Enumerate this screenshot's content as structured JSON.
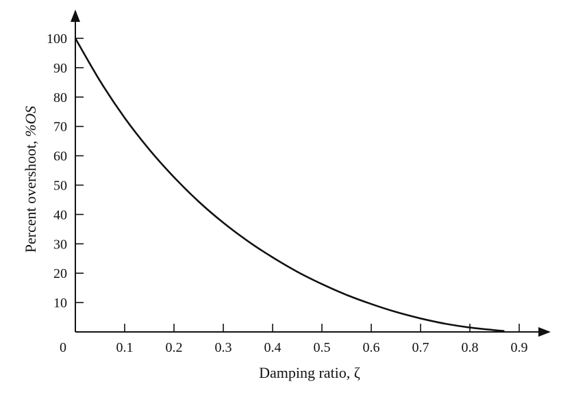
{
  "chart_data": {
    "type": "line",
    "title": "",
    "xlabel": "Damping ratio, ζ",
    "ylabel_prefix": "Percent overshoot, ",
    "ylabel_symbol": "%OS",
    "xlim": [
      0,
      0.9
    ],
    "ylim": [
      0,
      100
    ],
    "x_ticks": [
      0.1,
      0.2,
      0.3,
      0.4,
      0.5,
      0.6,
      0.7,
      0.8,
      0.9
    ],
    "x_tick_labels": [
      "0.1",
      "0.2",
      "0.3",
      "0.4",
      "0.5",
      "0.6",
      "0.7",
      "0.8",
      "0.9"
    ],
    "y_ticks": [
      10,
      20,
      30,
      40,
      50,
      60,
      70,
      80,
      90,
      100
    ],
    "y_tick_labels": [
      "10",
      "20",
      "30",
      "40",
      "50",
      "60",
      "70",
      "80",
      "90",
      "100"
    ],
    "origin_label": "0",
    "grid": false,
    "series": [
      {
        "x": [
          0,
          0.05,
          0.1,
          0.15,
          0.2,
          0.25,
          0.3,
          0.35,
          0.4,
          0.45,
          0.5,
          0.55,
          0.6,
          0.65,
          0.7,
          0.75,
          0.8,
          0.85,
          0.87
        ],
        "values": [
          100,
          85.5,
          72.9,
          62.1,
          52.7,
          44.4,
          37.2,
          30.9,
          25.4,
          20.5,
          16.3,
          12.6,
          9.5,
          6.8,
          4.6,
          2.8,
          1.5,
          0.6,
          0.3
        ]
      }
    ]
  }
}
